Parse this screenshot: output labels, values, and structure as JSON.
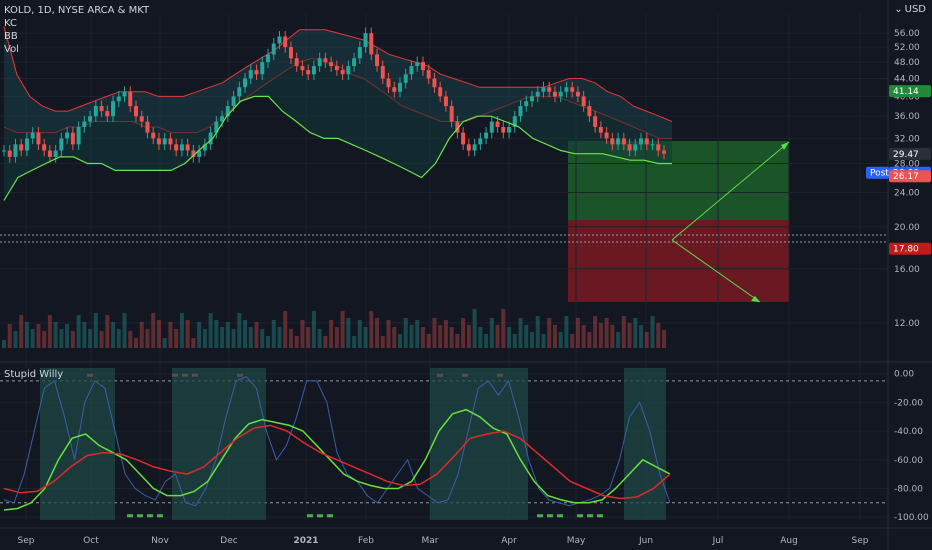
{
  "legend": {
    "symbol_line": "KOLD, 1D, NYSE ARCA & MKT",
    "indicator_kc": "KC",
    "indicator_bb": "BB",
    "indicator_vol": "Vol"
  },
  "currency": "USD",
  "subpanel_title": "Stupid Willy",
  "colors": {
    "background": "#131722",
    "up": "#26a69a",
    "down": "#ef5350",
    "kc_line": "#e53935",
    "bb_line": "#6be34a",
    "willy_line": "#3b5fa8",
    "willy_fast": "#67e03c",
    "willy_slow": "#e02a2a",
    "target_zone": "#1f5f2a",
    "stop_zone": "#7a1a22"
  },
  "chart_data": [
    {
      "type": "candlestick",
      "title": "KOLD, 1D, NYSE ARCA & MKT",
      "x_tick_labels": [
        "Sep",
        "Oct",
        "Nov",
        "Dec",
        "2021",
        "Feb",
        "Mar",
        "Apr",
        "May",
        "Jun",
        "Jul",
        "Aug",
        "Sep"
      ],
      "y_tick_labels": [
        "56.00",
        "52.00",
        "48.00",
        "44.00",
        "40.00",
        "36.00",
        "32.00",
        "28.00",
        "24.00",
        "20.00",
        "16.00",
        "12.00"
      ],
      "y_scale": "log",
      "ylim": [
        10.5,
        62
      ],
      "price_tags": [
        {
          "label": "41.14",
          "value": 41.14,
          "color": "#1f8b3a"
        },
        {
          "label": "29.47",
          "value": 29.47,
          "color": "#2a2e39"
        },
        {
          "label": "Post",
          "value": 26.66,
          "color": "#2962ff"
        },
        {
          "label": "26.66",
          "value": 26.66,
          "color": "#2962ff"
        },
        {
          "label": "26.17",
          "value": 26.17,
          "color": "#ef5350"
        },
        {
          "label": "17.80",
          "value": 17.8,
          "color": "#c21a1a"
        }
      ],
      "close_series": [
        30,
        29,
        31,
        30,
        32,
        33,
        31,
        30,
        29,
        30,
        32,
        33,
        31,
        34,
        35,
        36,
        38,
        37,
        36,
        39,
        40,
        41,
        38,
        36,
        35,
        33,
        32,
        31,
        32,
        31,
        30,
        31,
        30,
        29,
        30,
        31,
        33,
        35,
        36,
        38,
        40,
        42,
        44,
        46,
        45,
        48,
        50,
        53,
        55,
        52,
        49,
        47,
        46,
        45,
        47,
        49,
        48,
        47,
        46,
        45,
        47,
        49,
        52,
        56,
        50,
        47,
        44,
        42,
        41,
        43,
        45,
        47,
        48,
        46,
        44,
        42,
        40,
        38,
        35,
        33,
        31,
        30,
        31,
        32,
        33,
        35,
        34,
        33,
        34,
        36,
        38,
        39,
        40,
        41,
        42,
        41,
        40,
        41,
        42,
        41,
        40,
        38,
        36,
        34,
        33,
        32,
        31,
        32,
        31,
        30,
        31,
        32,
        31,
        31,
        30,
        29.5
      ],
      "keltner_upper": [
        58,
        45,
        40,
        38,
        37,
        37,
        38,
        39,
        40,
        41,
        41,
        41,
        40,
        40,
        40,
        41,
        42,
        43,
        45,
        47,
        49,
        51,
        54,
        57,
        57,
        57,
        56,
        55,
        54,
        52,
        50,
        49,
        48,
        47,
        45,
        44,
        43,
        42,
        42,
        42,
        42,
        42,
        42,
        43,
        44,
        44,
        43,
        41,
        40,
        38,
        37,
        36,
        35
      ],
      "keltner_mid": [
        34,
        33,
        33,
        33,
        33,
        34,
        34,
        35,
        35,
        35,
        35,
        34,
        34,
        33,
        33,
        33,
        34,
        36,
        38,
        40,
        42,
        44,
        46,
        48,
        49,
        48,
        47,
        45,
        44,
        42,
        40,
        38,
        37,
        36,
        35,
        35,
        35,
        36,
        37,
        38,
        39,
        40,
        40,
        40,
        39,
        38,
        37,
        36,
        35,
        34,
        33,
        32,
        32
      ],
      "bollinger_lower": [
        23,
        26,
        27,
        28,
        29,
        29,
        28,
        28,
        27,
        27,
        27,
        27,
        27,
        28,
        30,
        32,
        36,
        39,
        40,
        40,
        37,
        35,
        33,
        32,
        32,
        31,
        30,
        29,
        28,
        27,
        26,
        28,
        32,
        35,
        36,
        36,
        35,
        34,
        32,
        31,
        30,
        29.5,
        29.5,
        29.5,
        29,
        28.5,
        28.5,
        28,
        28
      ],
      "strategy": {
        "entry": 26.66,
        "target": 41.14,
        "stop": 17.8
      }
    },
    {
      "type": "line",
      "title": "Stupid Willy",
      "y_tick_labels": [
        "0.00",
        "-20.00",
        "-40.00",
        "-60.00",
        "-80.00",
        "-100.00"
      ],
      "ylim": [
        -102,
        4
      ],
      "series": [
        {
          "values": [
            -88,
            -90,
            -70,
            -40,
            -10,
            -5,
            -30,
            -60,
            -20,
            -5,
            -10,
            -40,
            -70,
            -80,
            -85,
            -88,
            -75,
            -70,
            -90,
            -92,
            -80,
            -60,
            -30,
            -5,
            -2,
            -10,
            -40,
            -60,
            -50,
            -30,
            -5,
            -5,
            -20,
            -55,
            -70,
            -75,
            -85,
            -90,
            -80,
            -70,
            -60,
            -80,
            -85,
            -90,
            -88,
            -70,
            -40,
            -10,
            -5,
            -15,
            -5,
            -30,
            -60,
            -80,
            -88,
            -90,
            -92,
            -90,
            -88,
            -85,
            -80,
            -60,
            -30,
            -20,
            -40,
            -70,
            -90
          ]
        },
        {
          "values": [
            -95,
            -94,
            -90,
            -80,
            -60,
            -45,
            -42,
            -50,
            -55,
            -60,
            -70,
            -80,
            -85,
            -85,
            -82,
            -75,
            -60,
            -45,
            -35,
            -32,
            -34,
            -36,
            -40,
            -50,
            -60,
            -70,
            -75,
            -78,
            -80,
            -80,
            -75,
            -60,
            -40,
            -28,
            -25,
            -30,
            -38,
            -42,
            -60,
            -75,
            -85,
            -88,
            -90,
            -90,
            -88,
            -80,
            -70,
            -60,
            -65,
            -70
          ]
        },
        {
          "values": [
            -80,
            -83,
            -82,
            -75,
            -65,
            -57,
            -55,
            -56,
            -60,
            -65,
            -68,
            -70,
            -65,
            -55,
            -45,
            -38,
            -36,
            -40,
            -48,
            -55,
            -60,
            -65,
            -70,
            -75,
            -78,
            -77,
            -70,
            -58,
            -45,
            -42,
            -40,
            -45,
            -55,
            -65,
            -75,
            -80,
            -85,
            -87,
            -86,
            -80,
            -70
          ]
        }
      ]
    }
  ]
}
